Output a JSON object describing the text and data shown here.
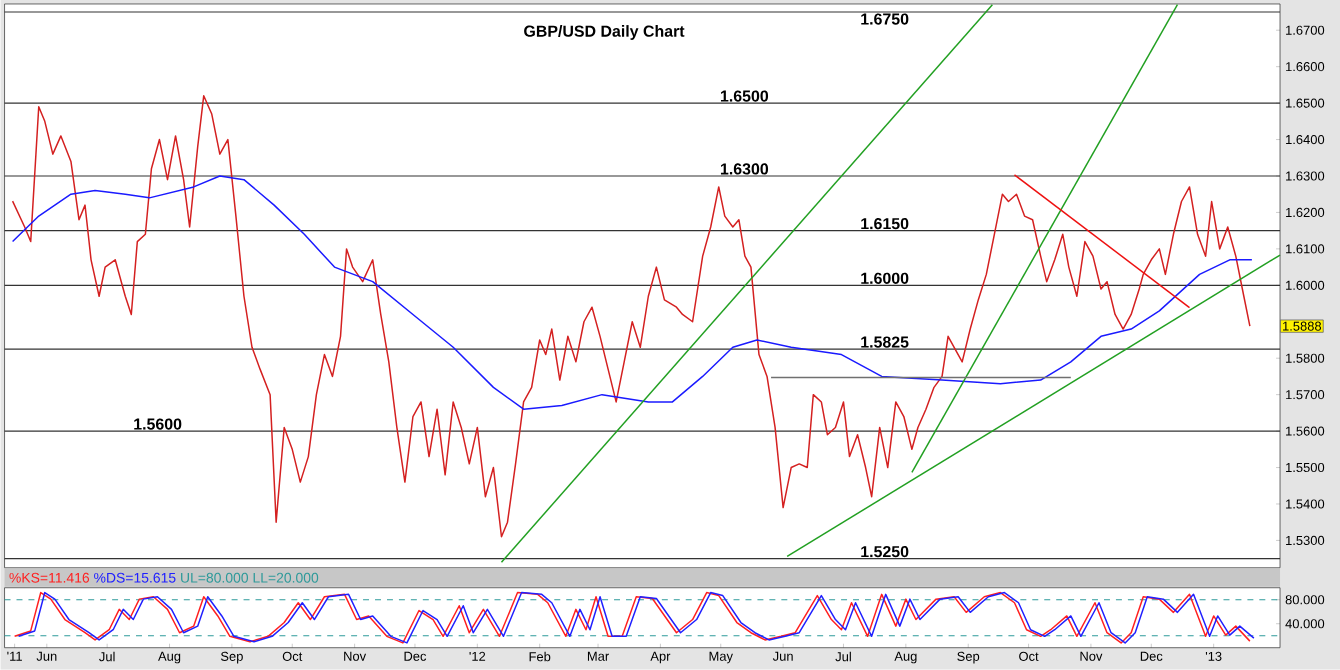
{
  "chart_data": [
    {
      "type": "line",
      "title": "GBP/USD Daily Chart",
      "xlim": [
        "2011-05-11",
        "2013-02-03"
      ],
      "ylim": [
        1.5225,
        1.6772
      ],
      "tick_labels": "y",
      "yticks": [
        {
          "value": 1.53,
          "label": "1.5300"
        },
        {
          "value": 1.54,
          "label": "1.5400"
        },
        {
          "value": 1.55,
          "label": "1.5500"
        },
        {
          "value": 1.56,
          "label": "1.5600"
        },
        {
          "value": 1.57,
          "label": "1.5700"
        },
        {
          "value": 1.58,
          "label": "1.5800"
        },
        {
          "value": 1.6,
          "label": "1.6000"
        },
        {
          "value": 1.61,
          "label": "1.6100"
        },
        {
          "value": 1.62,
          "label": "1.6200"
        },
        {
          "value": 1.63,
          "label": "1.6300"
        },
        {
          "value": 1.64,
          "label": "1.6400"
        },
        {
          "value": 1.65,
          "label": "1.6500"
        },
        {
          "value": 1.66,
          "label": "1.6600"
        },
        {
          "value": 1.67,
          "label": "1.6700"
        }
      ],
      "series": [
        {
          "color": "#d42020",
          "x": [
            "2011-05-15",
            "2011-05-21",
            "2011-05-24",
            "2011-05-28",
            "2011-05-31",
            "2011-06-04",
            "2011-06-08",
            "2011-06-13",
            "2011-06-17",
            "2011-06-20",
            "2011-06-23",
            "2011-06-27",
            "2011-06-30",
            "2011-07-05",
            "2011-07-10",
            "2011-07-13",
            "2011-07-16",
            "2011-07-20",
            "2011-07-23",
            "2011-07-27",
            "2011-07-31",
            "2011-08-04",
            "2011-08-08",
            "2011-08-11",
            "2011-08-15",
            "2011-08-18",
            "2011-08-22",
            "2011-08-26",
            "2011-08-30",
            "2011-09-03",
            "2011-09-07",
            "2011-09-11",
            "2011-09-15",
            "2011-09-20",
            "2011-09-23",
            "2011-09-27",
            "2011-10-01",
            "2011-10-05",
            "2011-10-09",
            "2011-10-13",
            "2011-10-17",
            "2011-10-21",
            "2011-10-25",
            "2011-10-28",
            "2011-10-31",
            "2011-11-05",
            "2011-11-10",
            "2011-11-14",
            "2011-11-18",
            "2011-11-22",
            "2011-11-26",
            "2011-11-30",
            "2011-12-04",
            "2011-12-08",
            "2011-12-12",
            "2011-12-16",
            "2011-12-20",
            "2011-12-24",
            "2011-12-28",
            "2012-01-01",
            "2012-01-05",
            "2012-01-09",
            "2012-01-13",
            "2012-01-16",
            "2012-01-20",
            "2012-01-24",
            "2012-01-28",
            "2012-02-01",
            "2012-02-04",
            "2012-02-07",
            "2012-02-11",
            "2012-02-15",
            "2012-02-19",
            "2012-02-23",
            "2012-02-27",
            "2012-03-02",
            "2012-03-06",
            "2012-03-10",
            "2012-03-14",
            "2012-03-18",
            "2012-03-22",
            "2012-03-26",
            "2012-03-30",
            "2012-04-03",
            "2012-04-09",
            "2012-04-12",
            "2012-04-17",
            "2012-04-22",
            "2012-04-26",
            "2012-04-30",
            "2012-05-03",
            "2012-05-07",
            "2012-05-10",
            "2012-05-13",
            "2012-05-16",
            "2012-05-20",
            "2012-05-24",
            "2012-05-28",
            "2012-06-01",
            "2012-06-05",
            "2012-06-09",
            "2012-06-13",
            "2012-06-16",
            "2012-06-20",
            "2012-06-23",
            "2012-06-27",
            "2012-07-01",
            "2012-07-04",
            "2012-07-08",
            "2012-07-12",
            "2012-07-15",
            "2012-07-19",
            "2012-07-23",
            "2012-07-27",
            "2012-07-31",
            "2012-08-04",
            "2012-08-07",
            "2012-08-11",
            "2012-08-15",
            "2012-08-19",
            "2012-08-22",
            "2012-08-25",
            "2012-08-29",
            "2012-09-02",
            "2012-09-06",
            "2012-09-10",
            "2012-09-14",
            "2012-09-18",
            "2012-09-21",
            "2012-09-25",
            "2012-09-29",
            "2012-10-03",
            "2012-10-07",
            "2012-10-10",
            "2012-10-14",
            "2012-10-18",
            "2012-10-21",
            "2012-10-25",
            "2012-10-29",
            "2012-11-02",
            "2012-11-06",
            "2012-11-09",
            "2012-11-13",
            "2012-11-17",
            "2012-11-21",
            "2012-11-25",
            "2012-11-27",
            "2012-12-01",
            "2012-12-05",
            "2012-12-08",
            "2012-12-12",
            "2012-12-16",
            "2012-12-20",
            "2012-12-24",
            "2012-12-28",
            "2012-12-31",
            "2013-01-04",
            "2013-01-08",
            "2013-01-12",
            "2013-01-16",
            "2013-01-19"
          ],
          "values": [
            1.6231,
            1.616,
            1.612,
            1.649,
            1.645,
            1.636,
            1.641,
            1.634,
            1.618,
            1.622,
            1.607,
            1.597,
            1.605,
            1.607,
            1.597,
            1.592,
            1.612,
            1.614,
            1.632,
            1.64,
            1.629,
            1.641,
            1.629,
            1.616,
            1.638,
            1.652,
            1.647,
            1.636,
            1.64,
            1.619,
            1.597,
            1.583,
            1.577,
            1.57,
            1.535,
            1.561,
            1.555,
            1.546,
            1.553,
            1.57,
            1.581,
            1.575,
            1.586,
            1.61,
            1.605,
            1.601,
            1.607,
            1.592,
            1.579,
            1.561,
            1.546,
            1.564,
            1.568,
            1.553,
            1.566,
            1.548,
            1.568,
            1.561,
            1.551,
            1.561,
            1.542,
            1.55,
            1.531,
            1.535,
            1.551,
            1.568,
            1.572,
            1.585,
            1.581,
            1.588,
            1.574,
            1.586,
            1.579,
            1.59,
            1.594,
            1.586,
            1.577,
            1.568,
            1.579,
            1.59,
            1.583,
            1.597,
            1.605,
            1.596,
            1.594,
            1.592,
            1.59,
            1.608,
            1.616,
            1.627,
            1.619,
            1.616,
            1.618,
            1.608,
            1.605,
            1.581,
            1.575,
            1.561,
            1.539,
            1.55,
            1.551,
            1.55,
            1.57,
            1.568,
            1.559,
            1.561,
            1.568,
            1.553,
            1.559,
            1.55,
            1.542,
            1.561,
            1.55,
            1.568,
            1.564,
            1.555,
            1.561,
            1.566,
            1.572,
            1.575,
            1.586,
            1.583,
            1.579,
            1.588,
            1.596,
            1.603,
            1.614,
            1.625,
            1.623,
            1.625,
            1.619,
            1.618,
            1.608,
            1.601,
            1.607,
            1.614,
            1.605,
            1.597,
            1.612,
            1.608,
            1.599,
            1.601,
            1.592,
            1.588,
            1.592,
            1.599,
            1.603,
            1.607,
            1.61,
            1.603,
            1.614,
            1.623,
            1.627,
            1.614,
            1.608,
            1.623,
            1.61,
            1.616,
            1.608,
            1.597,
            1.5888
          ]
        },
        {
          "color": "#1a1aff",
          "x": [
            "2011-05-15",
            "2011-05-28",
            "2011-06-13",
            "2011-06-25",
            "2011-07-10",
            "2011-07-22",
            "2011-08-13",
            "2011-08-26",
            "2011-09-07",
            "2011-09-22",
            "2011-10-07",
            "2011-10-22",
            "2011-11-10",
            "2011-11-30",
            "2011-12-20",
            "2012-01-09",
            "2012-01-24",
            "2012-02-12",
            "2012-03-03",
            "2012-03-26",
            "2012-04-07",
            "2012-04-22",
            "2012-05-07",
            "2012-05-19",
            "2012-06-05",
            "2012-06-30",
            "2012-07-20",
            "2012-08-19",
            "2012-09-17",
            "2012-10-07",
            "2012-10-22",
            "2012-11-06",
            "2012-11-21",
            "2012-12-05",
            "2012-12-25",
            "2013-01-09",
            "2013-01-20"
          ],
          "values": [
            1.612,
            1.619,
            1.625,
            1.626,
            1.625,
            1.624,
            1.627,
            1.63,
            1.629,
            1.622,
            1.614,
            1.605,
            1.601,
            1.592,
            1.583,
            1.572,
            1.566,
            1.567,
            1.57,
            1.568,
            1.568,
            1.575,
            1.583,
            1.585,
            1.583,
            1.581,
            1.575,
            1.574,
            1.573,
            1.574,
            1.579,
            1.586,
            1.588,
            1.593,
            1.603,
            1.607,
            1.607
          ]
        },
        {
          "color": "#22a022",
          "x": [
            "2012-01-13",
            "2012-09-13"
          ],
          "values": [
            1.524,
            1.677
          ]
        },
        {
          "color": "#22a022",
          "x": [
            "2012-08-04",
            "2012-12-14"
          ],
          "values": [
            1.5487,
            1.677
          ]
        },
        {
          "color": "#22a022",
          "x": [
            "2012-06-03",
            "2013-02-03"
          ],
          "values": [
            1.5256,
            1.6083
          ]
        },
        {
          "color": "#ee1111",
          "x": [
            "2012-09-24",
            "2012-12-20"
          ],
          "values": [
            1.6303,
            1.5939
          ]
        },
        {
          "color": "#707070",
          "x": [
            "2012-05-26",
            "2012-10-22"
          ],
          "values": [
            1.5747,
            1.5747
          ]
        }
      ],
      "ref_lines": [
        {
          "axis": "y",
          "value": 1.675,
          "label": "1.6750",
          "color": "#333333"
        },
        {
          "axis": "y",
          "value": 1.65,
          "label": "1.6500",
          "color": "#333333"
        },
        {
          "axis": "y",
          "value": 1.63,
          "label": "1.6300",
          "color": "#333333"
        },
        {
          "axis": "y",
          "value": 1.615,
          "label": "1.6150",
          "color": "#333333"
        },
        {
          "axis": "y",
          "value": 1.6,
          "label": "1.6000",
          "color": "#333333"
        },
        {
          "axis": "y",
          "value": 1.5825,
          "label": "1.5825",
          "color": "#333333"
        },
        {
          "axis": "y",
          "value": 1.56,
          "label": "1.5600",
          "color": "#333333"
        },
        {
          "axis": "y",
          "value": 1.525,
          "label": "1.5250",
          "color": "#333333"
        }
      ],
      "annotations": [
        {
          "text": "1.5888",
          "x": "2013-01-19",
          "y": 1.5888
        }
      ]
    },
    {
      "type": "line",
      "xlim": [
        "2011-05-11",
        "2013-02-03"
      ],
      "ylim": [
        0,
        100
      ],
      "legend": "top left",
      "xticks": [
        {
          "value": "2011-05-16",
          "label": "'11"
        },
        {
          "value": "2011-06-01",
          "label": "Jun"
        },
        {
          "value": "2011-07-01",
          "label": "Jul"
        },
        {
          "value": "2011-08-01",
          "label": "Aug"
        },
        {
          "value": "2011-09-01",
          "label": "Sep"
        },
        {
          "value": "2011-10-01",
          "label": "Oct"
        },
        {
          "value": "2011-11-01",
          "label": "Nov"
        },
        {
          "value": "2011-12-01",
          "label": "Dec"
        },
        {
          "value": "2012-01-01",
          "label": "'12"
        },
        {
          "value": "2012-02-01",
          "label": "Feb"
        },
        {
          "value": "2012-03-01",
          "label": "Mar"
        },
        {
          "value": "2012-04-01",
          "label": "Apr"
        },
        {
          "value": "2012-05-01",
          "label": "May"
        },
        {
          "value": "2012-06-01",
          "label": "Jun"
        },
        {
          "value": "2012-07-01",
          "label": "Jul"
        },
        {
          "value": "2012-08-01",
          "label": "Aug"
        },
        {
          "value": "2012-09-01",
          "label": "Sep"
        },
        {
          "value": "2012-10-01",
          "label": "Oct"
        },
        {
          "value": "2012-11-01",
          "label": "Nov"
        },
        {
          "value": "2012-12-01",
          "label": "Dec"
        },
        {
          "value": "2013-01-01",
          "label": "'13"
        }
      ],
      "yticks": [
        {
          "value": 80,
          "label": "80.000"
        },
        {
          "value": 40,
          "label": "40.000"
        }
      ],
      "x": [
        "2011-05-16",
        "2011-05-24",
        "2011-05-29",
        "2011-06-03",
        "2011-06-10",
        "2011-06-15",
        "2011-06-20",
        "2011-06-25",
        "2011-07-02",
        "2011-07-07",
        "2011-07-12",
        "2011-07-17",
        "2011-07-24",
        "2011-07-31",
        "2011-08-06",
        "2011-08-13",
        "2011-08-18",
        "2011-08-25",
        "2011-08-31",
        "2011-09-10",
        "2011-09-19",
        "2011-09-27",
        "2011-10-04",
        "2011-10-10",
        "2011-10-17",
        "2011-10-27",
        "2011-11-02",
        "2011-11-08",
        "2011-11-17",
        "2011-11-25",
        "2011-12-03",
        "2011-12-10",
        "2011-12-15",
        "2011-12-23",
        "2011-12-28",
        "2012-01-04",
        "2012-01-12",
        "2012-01-21",
        "2012-01-31",
        "2012-02-05",
        "2012-02-14",
        "2012-02-19",
        "2012-02-24",
        "2012-02-29",
        "2012-03-06",
        "2012-03-13",
        "2012-03-20",
        "2012-03-28",
        "2012-04-09",
        "2012-04-17",
        "2012-04-24",
        "2012-04-30",
        "2012-05-09",
        "2012-05-16",
        "2012-05-23",
        "2012-05-31",
        "2012-06-07",
        "2012-06-18",
        "2012-06-25",
        "2012-06-30",
        "2012-07-05",
        "2012-07-13",
        "2012-07-20",
        "2012-07-27",
        "2012-08-01",
        "2012-08-06",
        "2012-08-16",
        "2012-08-25",
        "2012-08-31",
        "2012-09-09",
        "2012-09-17",
        "2012-09-24",
        "2012-09-30",
        "2012-10-07",
        "2012-10-12",
        "2012-10-20",
        "2012-10-25",
        "2012-11-03",
        "2012-11-09",
        "2012-11-16",
        "2012-11-21",
        "2012-11-27",
        "2012-12-05",
        "2012-12-12",
        "2012-12-20",
        "2012-12-28",
        "2013-01-01",
        "2013-01-07",
        "2013-01-12",
        "2013-01-19"
      ],
      "series": [
        {
          "name": "%KS=11.416",
          "color": "#ff2020",
          "values": [
            19,
            28,
            92,
            81,
            47,
            36,
            25,
            13,
            30,
            64,
            47,
            81,
            85,
            64,
            25,
            36,
            85,
            53,
            19,
            10,
            19,
            42,
            75,
            47,
            85,
            89,
            47,
            53,
            19,
            8,
            62,
            47,
            19,
            70,
            25,
            64,
            19,
            92,
            89,
            75,
            19,
            64,
            30,
            85,
            19,
            19,
            85,
            82,
            25,
            47,
            92,
            87,
            42,
            25,
            13,
            19,
            25,
            87,
            47,
            30,
            75,
            19,
            89,
            36,
            81,
            47,
            81,
            85,
            59,
            85,
            92,
            75,
            30,
            19,
            30,
            53,
            19,
            75,
            25,
            8,
            25,
            85,
            81,
            59,
            89,
            19,
            53,
            21,
            36,
            11
          ]
        },
        {
          "name": "%DS=15.615",
          "color": "#2020ff",
          "x": [
            "2011-05-18",
            "2011-05-26",
            "2011-05-31",
            "2011-06-05",
            "2011-06-12",
            "2011-06-17",
            "2011-06-22",
            "2011-06-27",
            "2011-07-04",
            "2011-07-09",
            "2011-07-14",
            "2011-07-19",
            "2011-07-26",
            "2011-08-02",
            "2011-08-08",
            "2011-08-15",
            "2011-08-20",
            "2011-08-27",
            "2011-09-02",
            "2011-09-12",
            "2011-09-21",
            "2011-09-29",
            "2011-10-06",
            "2011-10-12",
            "2011-10-19",
            "2011-10-29",
            "2011-11-04",
            "2011-11-10",
            "2011-11-19",
            "2011-11-27",
            "2011-12-05",
            "2011-12-12",
            "2011-12-17",
            "2011-12-25",
            "2011-12-30",
            "2012-01-06",
            "2012-01-14",
            "2012-01-23",
            "2012-02-02",
            "2012-02-07",
            "2012-02-16",
            "2012-02-21",
            "2012-02-26",
            "2012-03-02",
            "2012-03-08",
            "2012-03-15",
            "2012-03-22",
            "2012-03-30",
            "2012-04-11",
            "2012-04-19",
            "2012-04-26",
            "2012-05-02",
            "2012-05-11",
            "2012-05-18",
            "2012-05-25",
            "2012-06-02",
            "2012-06-09",
            "2012-06-20",
            "2012-06-27",
            "2012-07-02",
            "2012-07-07",
            "2012-07-15",
            "2012-07-22",
            "2012-07-29",
            "2012-08-03",
            "2012-08-08",
            "2012-08-18",
            "2012-08-27",
            "2012-09-02",
            "2012-09-11",
            "2012-09-19",
            "2012-09-26",
            "2012-10-02",
            "2012-10-09",
            "2012-10-14",
            "2012-10-22",
            "2012-10-27",
            "2012-11-05",
            "2012-11-11",
            "2012-11-18",
            "2012-11-23",
            "2012-11-29",
            "2012-12-07",
            "2012-12-14",
            "2012-12-22",
            "2012-12-30",
            "2013-01-03",
            "2013-01-09",
            "2013-01-14",
            "2013-01-21"
          ],
          "values": [
            19,
            28,
            92,
            81,
            47,
            36,
            25,
            13,
            30,
            64,
            47,
            81,
            85,
            64,
            25,
            36,
            85,
            53,
            19,
            10,
            19,
            42,
            75,
            47,
            85,
            89,
            47,
            53,
            19,
            8,
            62,
            47,
            19,
            70,
            25,
            64,
            19,
            92,
            89,
            75,
            19,
            64,
            30,
            85,
            19,
            19,
            85,
            82,
            25,
            47,
            92,
            87,
            42,
            25,
            13,
            19,
            25,
            87,
            47,
            30,
            75,
            19,
            89,
            36,
            81,
            47,
            81,
            85,
            59,
            85,
            92,
            75,
            30,
            19,
            30,
            53,
            19,
            75,
            25,
            8,
            25,
            85,
            81,
            59,
            89,
            19,
            53,
            21,
            36,
            16
          ]
        }
      ],
      "ref_lines": [
        {
          "axis": "y",
          "value": 80,
          "label": "UL=80.000",
          "color": "#2e9a9a",
          "line_style": "dashed"
        },
        {
          "axis": "y",
          "value": 20,
          "label": "LL=20.000",
          "color": "#2e9a9a",
          "line_style": "dashed"
        }
      ]
    }
  ]
}
